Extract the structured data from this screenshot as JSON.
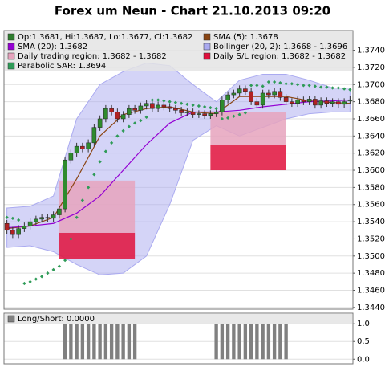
{
  "chart_data": [
    {
      "type": "candlestick",
      "title": "Forex um Neun - Chart 21.10.2013 09:20",
      "ylim": [
        1.3438,
        1.3763
      ],
      "yticks": [
        {
          "value": 1.344,
          "label": "1.3440"
        },
        {
          "value": 1.346,
          "label": "1.3460"
        },
        {
          "value": 1.348,
          "label": "1.3480"
        },
        {
          "value": 1.35,
          "label": "1.3500"
        },
        {
          "value": 1.352,
          "label": "1.3520"
        },
        {
          "value": 1.354,
          "label": "1.3540"
        },
        {
          "value": 1.356,
          "label": "1.3560"
        },
        {
          "value": 1.358,
          "label": "1.3580"
        },
        {
          "value": 1.36,
          "label": "1.3600"
        },
        {
          "value": 1.362,
          "label": "1.3620"
        },
        {
          "value": 1.364,
          "label": "1.3640"
        },
        {
          "value": 1.366,
          "label": "1.3660"
        },
        {
          "value": 1.368,
          "label": "1.3680"
        },
        {
          "value": 1.37,
          "label": "1.3700"
        },
        {
          "value": 1.372,
          "label": "1.3720"
        },
        {
          "value": 1.374,
          "label": "1.3740"
        }
      ],
      "grid": true,
      "series": [
        {
          "kind": "candles",
          "name": "Op:1.3681, Hi:1.3687, Lo:1.3677, Cl:1.3682",
          "color": "#2e7d2e",
          "up_color": "#2e8b2e",
          "down_color": "#b22222",
          "open": [
            1.3538,
            1.353,
            1.3525,
            1.3532,
            1.3535,
            1.354,
            1.3543,
            1.3545,
            1.3544,
            1.3548,
            1.3555,
            1.3612,
            1.362,
            1.3628,
            1.3625,
            1.3632,
            1.365,
            1.366,
            1.3672,
            1.3668,
            1.366,
            1.3665,
            1.3672,
            1.367,
            1.3675,
            1.3678,
            1.3672,
            1.3676,
            1.3674,
            1.3672,
            1.367,
            1.3667,
            1.3668,
            1.3665,
            1.3666,
            1.3664,
            1.3666,
            1.3668,
            1.3682,
            1.3688,
            1.369,
            1.3695,
            1.3692,
            1.368,
            1.3676,
            1.369,
            1.3688,
            1.3692,
            1.3685,
            1.368,
            1.3678,
            1.3682,
            1.368,
            1.3683,
            1.3676,
            1.3681,
            1.3678,
            1.368,
            1.3677,
            1.3681
          ],
          "high": [
            1.3542,
            1.3534,
            1.3536,
            1.3539,
            1.3544,
            1.3547,
            1.3549,
            1.3549,
            1.3552,
            1.3559,
            1.3616,
            1.3624,
            1.3632,
            1.3632,
            1.3636,
            1.3654,
            1.3664,
            1.3676,
            1.3676,
            1.3672,
            1.3669,
            1.3676,
            1.3676,
            1.3679,
            1.3682,
            1.3682,
            1.368,
            1.368,
            1.3678,
            1.3676,
            1.3674,
            1.3672,
            1.3672,
            1.367,
            1.367,
            1.367,
            1.3672,
            1.3686,
            1.3692,
            1.3694,
            1.3699,
            1.3699,
            1.3696,
            1.3684,
            1.3694,
            1.3694,
            1.3696,
            1.3696,
            1.3689,
            1.3684,
            1.3686,
            1.3686,
            1.3687,
            1.3687,
            1.3685,
            1.3685,
            1.3684,
            1.3684,
            1.3684,
            1.3687
          ],
          "low": [
            1.3526,
            1.3521,
            1.3521,
            1.3528,
            1.3531,
            1.3536,
            1.3539,
            1.354,
            1.354,
            1.3544,
            1.3551,
            1.3608,
            1.3616,
            1.3621,
            1.3621,
            1.3628,
            1.3646,
            1.3656,
            1.3664,
            1.3656,
            1.3656,
            1.3661,
            1.3666,
            1.3666,
            1.3671,
            1.3668,
            1.3668,
            1.367,
            1.3668,
            1.3666,
            1.3663,
            1.3663,
            1.3661,
            1.3661,
            1.366,
            1.366,
            1.3662,
            1.3664,
            1.3678,
            1.3684,
            1.3686,
            1.3688,
            1.3676,
            1.3672,
            1.3672,
            1.3684,
            1.3684,
            1.3681,
            1.3676,
            1.3674,
            1.3674,
            1.3676,
            1.3676,
            1.3672,
            1.3672,
            1.3674,
            1.3674,
            1.3673,
            1.3673,
            1.3677
          ],
          "close": [
            1.353,
            1.3525,
            1.3532,
            1.3535,
            1.354,
            1.3543,
            1.3545,
            1.3544,
            1.3548,
            1.3555,
            1.3612,
            1.362,
            1.3628,
            1.3625,
            1.3632,
            1.365,
            1.366,
            1.3672,
            1.3668,
            1.366,
            1.3665,
            1.3672,
            1.367,
            1.3675,
            1.3678,
            1.3672,
            1.3676,
            1.3674,
            1.3672,
            1.367,
            1.3667,
            1.3668,
            1.3665,
            1.3666,
            1.3664,
            1.3666,
            1.3668,
            1.3682,
            1.3688,
            1.369,
            1.3695,
            1.3692,
            1.368,
            1.3676,
            1.369,
            1.3688,
            1.3692,
            1.3685,
            1.368,
            1.3678,
            1.3682,
            1.368,
            1.3683,
            1.3676,
            1.3681,
            1.3678,
            1.368,
            1.3677,
            1.368,
            1.3682
          ]
        },
        {
          "kind": "line",
          "name": "SMA (5): 1.3678",
          "color": "#8b4513",
          "x": [
            0,
            4,
            8,
            12,
            16,
            20,
            24,
            28,
            32,
            36,
            40,
            44,
            48,
            52,
            56,
            59
          ],
          "values": [
            1.3532,
            1.3535,
            1.3545,
            1.359,
            1.364,
            1.3665,
            1.3672,
            1.3674,
            1.3668,
            1.3666,
            1.3686,
            1.3686,
            1.3686,
            1.3681,
            1.3679,
            1.3678
          ]
        },
        {
          "kind": "line",
          "name": "SMA (20): 1.3682",
          "color": "#9400d3",
          "x": [
            0,
            4,
            8,
            12,
            16,
            20,
            24,
            28,
            32,
            36,
            40,
            44,
            48,
            52,
            56,
            59
          ],
          "values": [
            1.3533,
            1.3535,
            1.3538,
            1.355,
            1.357,
            1.36,
            1.363,
            1.3655,
            1.3668,
            1.3668,
            1.367,
            1.3674,
            1.3677,
            1.368,
            1.3681,
            1.3682
          ]
        },
        {
          "kind": "band",
          "name": "Bollinger (20, 2): 1.3668 - 1.3696",
          "color": "#aaaaf0",
          "x": [
            0,
            4,
            8,
            12,
            16,
            20,
            24,
            28,
            32,
            36,
            40,
            44,
            48,
            52,
            56,
            59
          ],
          "upper": [
            1.3556,
            1.3558,
            1.357,
            1.366,
            1.37,
            1.3715,
            1.3725,
            1.3722,
            1.37,
            1.368,
            1.3705,
            1.3712,
            1.3712,
            1.3705,
            1.3696,
            1.3696
          ],
          "lower": [
            1.351,
            1.3512,
            1.3505,
            1.349,
            1.3478,
            1.348,
            1.35,
            1.356,
            1.3635,
            1.3652,
            1.364,
            1.365,
            1.366,
            1.3666,
            1.3668,
            1.3668
          ]
        },
        {
          "kind": "regions",
          "name": "Daily trading region: 1.3682 - 1.3682",
          "color": "#e6a3bd",
          "regions": [
            {
              "from": 9,
              "to": 22,
              "top": 1.3588,
              "bottom": 1.3527
            },
            {
              "from": 35,
              "to": 48,
              "top": 1.3668,
              "bottom": 1.363
            }
          ]
        },
        {
          "kind": "regions",
          "name": "Daily S/L region: 1.3682 - 1.3682",
          "color": "#e0103c",
          "regions": [
            {
              "from": 9,
              "to": 22,
              "top": 1.3527,
              "bottom": 1.3497
            },
            {
              "from": 35,
              "to": 48,
              "top": 1.363,
              "bottom": 1.36
            }
          ]
        },
        {
          "kind": "dots",
          "name": "Parabolic SAR: 1.3694",
          "color": "#2e9b57",
          "values": [
            1.3545,
            1.3544,
            1.3542,
            1.3468,
            1.347,
            1.3473,
            1.3476,
            1.348,
            1.3484,
            1.3488,
            1.3495,
            1.352,
            1.3545,
            1.3565,
            1.358,
            1.3595,
            1.361,
            1.3622,
            1.3632,
            1.364,
            1.3646,
            1.3651,
            1.3655,
            1.3658,
            1.3662,
            1.3682,
            1.3682,
            1.3681,
            1.368,
            1.3679,
            1.3678,
            1.3677,
            1.3676,
            1.3675,
            1.3674,
            1.3673,
            1.3672,
            1.366,
            1.3661,
            1.3663,
            1.3665,
            1.3667,
            1.3699,
            1.3699,
            1.3698,
            1.3703,
            1.3703,
            1.3702,
            1.3701,
            1.3701,
            1.37,
            1.3699,
            1.3699,
            1.3698,
            1.3697,
            1.3697,
            1.3696,
            1.3696,
            1.3695,
            1.3694
          ]
        }
      ]
    },
    {
      "type": "bar",
      "ylim": [
        -0.13,
        1.3
      ],
      "yticks": [
        {
          "value": 0,
          "label": "0.0"
        },
        {
          "value": 0.5,
          "label": "0.5"
        },
        {
          "value": 1,
          "label": "1.0"
        }
      ],
      "grid": true,
      "series": [
        {
          "name": "Long/Short: 0.0000",
          "color": "#808080",
          "values": [
            0,
            0,
            0,
            0,
            0,
            0,
            0,
            0,
            0,
            0,
            1,
            1,
            1,
            1,
            1,
            1,
            1,
            1,
            1,
            1,
            1,
            1,
            1,
            0,
            0,
            0,
            0,
            0,
            0,
            0,
            0,
            0,
            0,
            0,
            0,
            0,
            1,
            1,
            1,
            1,
            1,
            1,
            1,
            1,
            1,
            1,
            1,
            1,
            1,
            0,
            0,
            0,
            0,
            0,
            0,
            0,
            0,
            0,
            0,
            0
          ]
        }
      ]
    }
  ]
}
